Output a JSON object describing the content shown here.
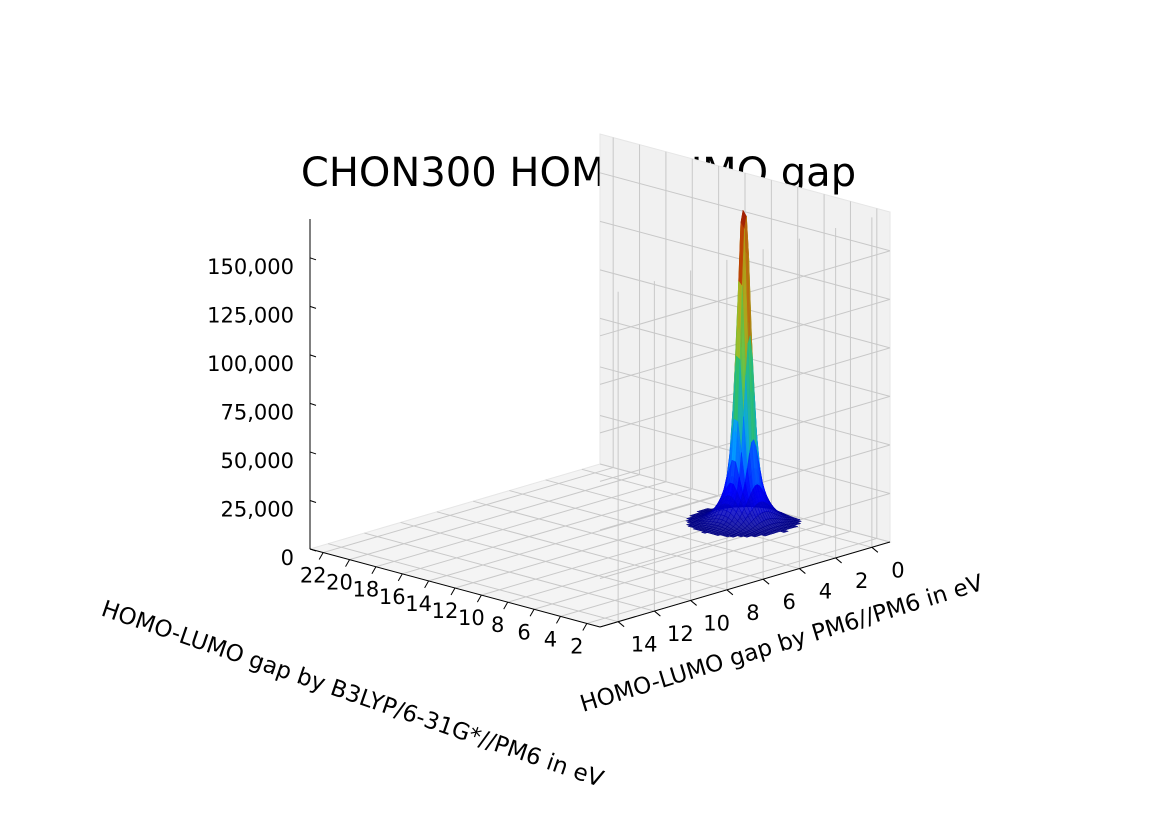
{
  "chart_data": {
    "type": "surface3d",
    "title": "CHON300 HOMO-LUMO gap",
    "xlabel": "HOMO-LUMO gap by B3LYP/6-31G*//PM6 in eV",
    "ylabel": "HOMO-LUMO gap by PM6//PM6 in eV",
    "zlabel": "",
    "x_ticks": [
      "2",
      "4",
      "6",
      "8",
      "10",
      "12",
      "14",
      "16",
      "18",
      "20",
      "22"
    ],
    "y_ticks": [
      "0",
      "2",
      "4",
      "6",
      "8",
      "10",
      "12",
      "14"
    ],
    "z_ticks": [
      "0",
      "25,000",
      "50,000",
      "75,000",
      "100,000",
      "125,000",
      "150,000"
    ],
    "xlim": [
      1,
      23
    ],
    "ylim": [
      -1,
      15
    ],
    "zlim": [
      0,
      170000
    ],
    "peak": {
      "x": 9.6,
      "y": 0.8,
      "z": 170000
    },
    "colormap": "jet",
    "colors": [
      "#00007f",
      "#0000ff",
      "#00a0ff",
      "#2ec060",
      "#a8c020",
      "#c04000",
      "#8b0000"
    ],
    "grid": true
  }
}
